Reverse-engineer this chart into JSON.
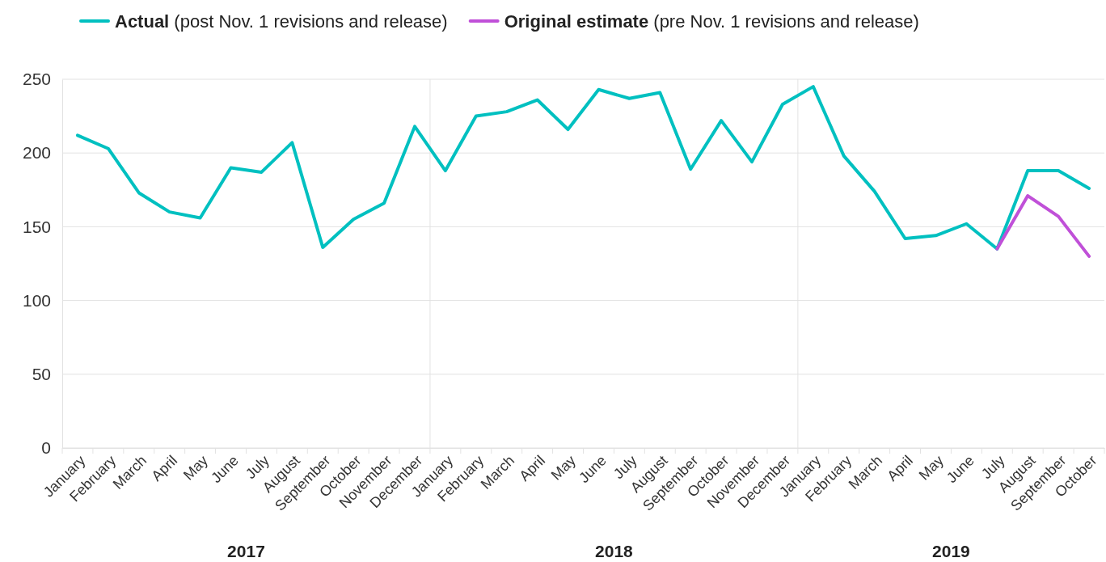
{
  "chart_data": {
    "type": "line",
    "categories": [
      "January",
      "February",
      "March",
      "April",
      "May",
      "June",
      "July",
      "August",
      "September",
      "October",
      "November",
      "December",
      "January",
      "February",
      "March",
      "April",
      "May",
      "June",
      "July",
      "August",
      "September",
      "October",
      "November",
      "December",
      "January",
      "February",
      "March",
      "April",
      "May",
      "June",
      "July",
      "August",
      "September",
      "October"
    ],
    "series": [
      {
        "name": "Actual (post Nov. 1 revisions and release)",
        "color": "#00c0c0",
        "values": [
          212,
          203,
          173,
          160,
          156,
          190,
          187,
          207,
          136,
          155,
          166,
          218,
          188,
          225,
          228,
          236,
          216,
          243,
          237,
          241,
          189,
          222,
          194,
          233,
          245,
          198,
          174,
          142,
          144,
          152,
          135,
          188,
          188,
          176
        ]
      },
      {
        "name": "Original estimate (pre Nov. 1 revisions and release)",
        "color": "#c050d8",
        "values": [
          null,
          null,
          null,
          null,
          null,
          null,
          null,
          null,
          null,
          null,
          null,
          null,
          null,
          null,
          null,
          null,
          null,
          null,
          null,
          null,
          null,
          null,
          null,
          null,
          null,
          null,
          null,
          null,
          null,
          null,
          135,
          171,
          157,
          130
        ]
      }
    ],
    "ylim": [
      0,
      250
    ],
    "yticks": [
      0,
      50,
      100,
      150,
      200,
      250
    ],
    "grid": "y",
    "legend": "top left",
    "marker": "none",
    "line_style": "solid",
    "annotations": [
      "2017",
      "2018",
      "2019"
    ]
  }
}
